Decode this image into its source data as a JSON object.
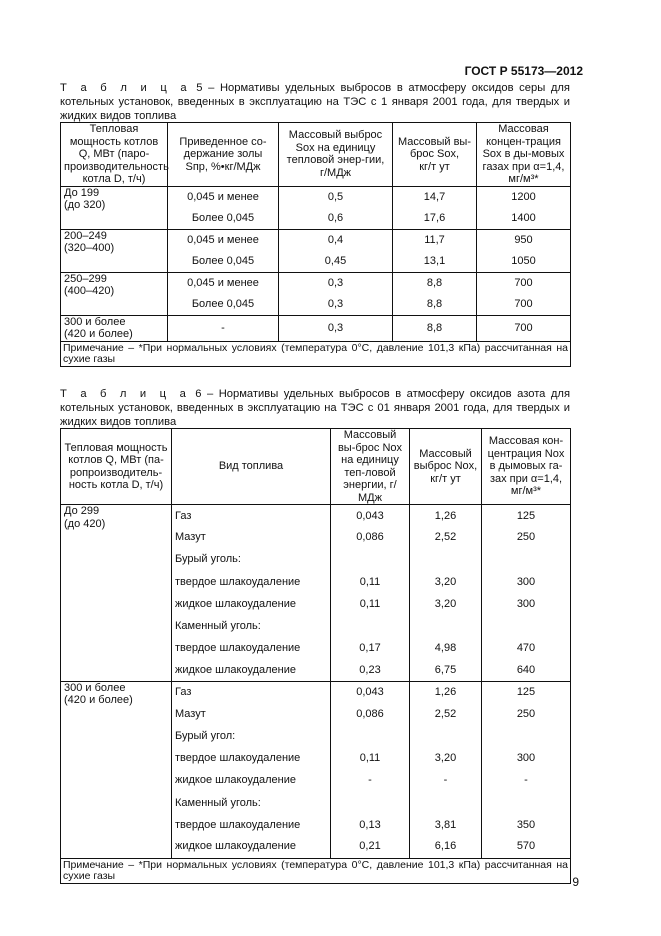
{
  "header": {
    "doc_id": "ГОСТ Р 55173—2012"
  },
  "table5": {
    "caption_label": "Т а б л и ц а",
    "caption_text": "5 – Нормативы удельных выбросов в атмосферу оксидов серы для котельных установок, введенных в эксплуатацию на ТЭС с 1 января 2001 года, для твердых и жидких видов топлива",
    "columns": [
      "Тепловая мощность котлов Q, МВт (паро-производительность котла D, т/ч)",
      "Приведенное со-держание золы Sпр, %•кг/МДж",
      "Массовый выброс Sox на единицу тепловой энер-гии,\nг/МДж",
      "Массовый вы-брос Sox,\nкг/т ут",
      "Массовая концен-трация Sox в ды-мовых газах при α=1,4, мг/м³*"
    ],
    "groups": [
      {
        "capacity": "До 199\n(до 320)",
        "rows": [
          [
            "0,045 и менее",
            "0,5",
            "14,7",
            "1200"
          ],
          [
            "Более 0,045",
            "0,6",
            "17,6",
            "1400"
          ]
        ]
      },
      {
        "capacity": "200–249\n(320–400)",
        "rows": [
          [
            "0,045 и менее",
            "0,4",
            "11,7",
            "950"
          ],
          [
            "Более 0,045",
            "0,45",
            "13,1",
            "1050"
          ]
        ]
      },
      {
        "capacity": "250–299\n(400–420)",
        "rows": [
          [
            "0,045 и менее",
            "0,3",
            "8,8",
            "700"
          ],
          [
            "Более 0,045",
            "0,3",
            "8,8",
            "700"
          ]
        ]
      },
      {
        "capacity": "300 и более\n(420 и более)",
        "rows": [
          [
            "-",
            "0,3",
            "8,8",
            "700"
          ]
        ]
      }
    ],
    "note": "Примечание – *При нормальных условиях (температура 0°С, давление 101,3 кПа) рассчитанная на сухие газы"
  },
  "table6": {
    "caption_label": "Т а б л и ц а",
    "caption_text": "6 – Нормативы удельных выбросов в атмосферу оксидов азота для котельных установок, введенных в эксплуатацию на ТЭС с 01 января 2001 года, для твердых и жидких видов топлива",
    "columns": [
      "Тепловая мощность котлов Q, МВт (па-ропроизводитель-ность котла D, т/ч)",
      "Вид топлива",
      "Массовый вы-брос Nox на единицу теп-ловой энергии, г/МДж",
      "Массовый выброс Nox, кг/т ут",
      "Массовая кон-центрация Nox в дымовых га-зах при α=1,4, мг/м³*"
    ],
    "groups": [
      {
        "capacity": "До 299\n(до 420)",
        "rows": [
          [
            "Газ",
            "0,043",
            "1,26",
            "125"
          ],
          [
            "Мазут",
            "0,086",
            "2,52",
            "250"
          ],
          [
            "Бурый уголь:",
            "",
            "",
            ""
          ],
          [
            "твердое шлакоудаление",
            "0,11",
            "3,20",
            "300"
          ],
          [
            "жидкое шлакоудаление",
            "0,11",
            "3,20",
            "300"
          ],
          [
            "Каменный уголь:",
            "",
            "",
            ""
          ],
          [
            "твердое шлакоудаление",
            "0,17",
            "4,98",
            "470"
          ],
          [
            "жидкое шлакоудаление",
            "0,23",
            "6,75",
            "640"
          ]
        ]
      },
      {
        "capacity": "300 и более\n(420 и более)",
        "rows": [
          [
            "Газ",
            "0,043",
            "1,26",
            "125"
          ],
          [
            "Мазут",
            "0,086",
            "2,52",
            "250"
          ],
          [
            "Бурый угол:",
            "",
            "",
            ""
          ],
          [
            "твердое шлакоудаление",
            "0,11",
            "3,20",
            "300"
          ],
          [
            "жидкое шлакоудаление",
            "-",
            "-",
            "-"
          ],
          [
            "Каменный уголь:",
            "",
            "",
            ""
          ],
          [
            "твердое шлакоудаление",
            "0,13",
            "3,81",
            "350"
          ],
          [
            "жидкое шлакоудаление",
            "0,21",
            "6,16",
            "570"
          ]
        ]
      }
    ],
    "note": "Примечание – *При нормальных условиях (температура 0°С, давление 101,3 кПа) рассчитанная на сухие газы"
  },
  "page_number": "9"
}
